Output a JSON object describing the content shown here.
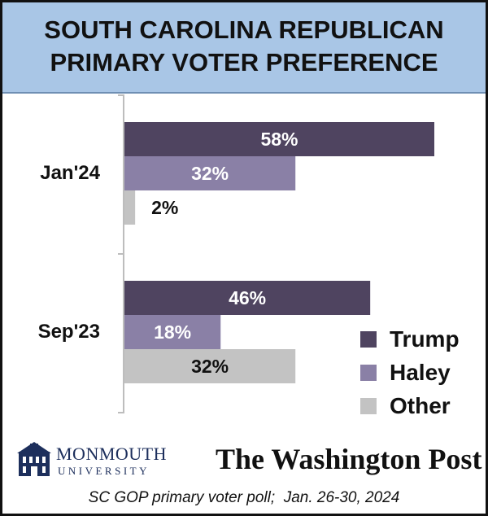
{
  "title": {
    "line1": "SOUTH CAROLINA REPUBLICAN",
    "line2": "PRIMARY VOTER PREFERENCE"
  },
  "chart_data": {
    "type": "bar",
    "orientation": "horizontal",
    "categories": [
      "Jan'24",
      "Sep'23"
    ],
    "series": [
      {
        "name": "Trump",
        "values": [
          58,
          46
        ],
        "labels": [
          "58%",
          "46%"
        ],
        "color": "#4f4460"
      },
      {
        "name": "Haley",
        "values": [
          32,
          18
        ],
        "labels": [
          "32%",
          "18%"
        ],
        "color": "#8a80a6"
      },
      {
        "name": "Other",
        "values": [
          2,
          32
        ],
        "labels": [
          "2%",
          "32%"
        ],
        "color": "#c3c3c3"
      }
    ],
    "unit": "%",
    "xlim": [
      0,
      62
    ],
    "grid": false,
    "legend_position": "bottom-right"
  },
  "logos": {
    "monmouth_name": "MONMOUTH",
    "monmouth_sub": "UNIVERSITY",
    "wapo": "The Washington Post"
  },
  "footnote": "SC GOP primary voter poll;  Jan. 26-30, 2024"
}
